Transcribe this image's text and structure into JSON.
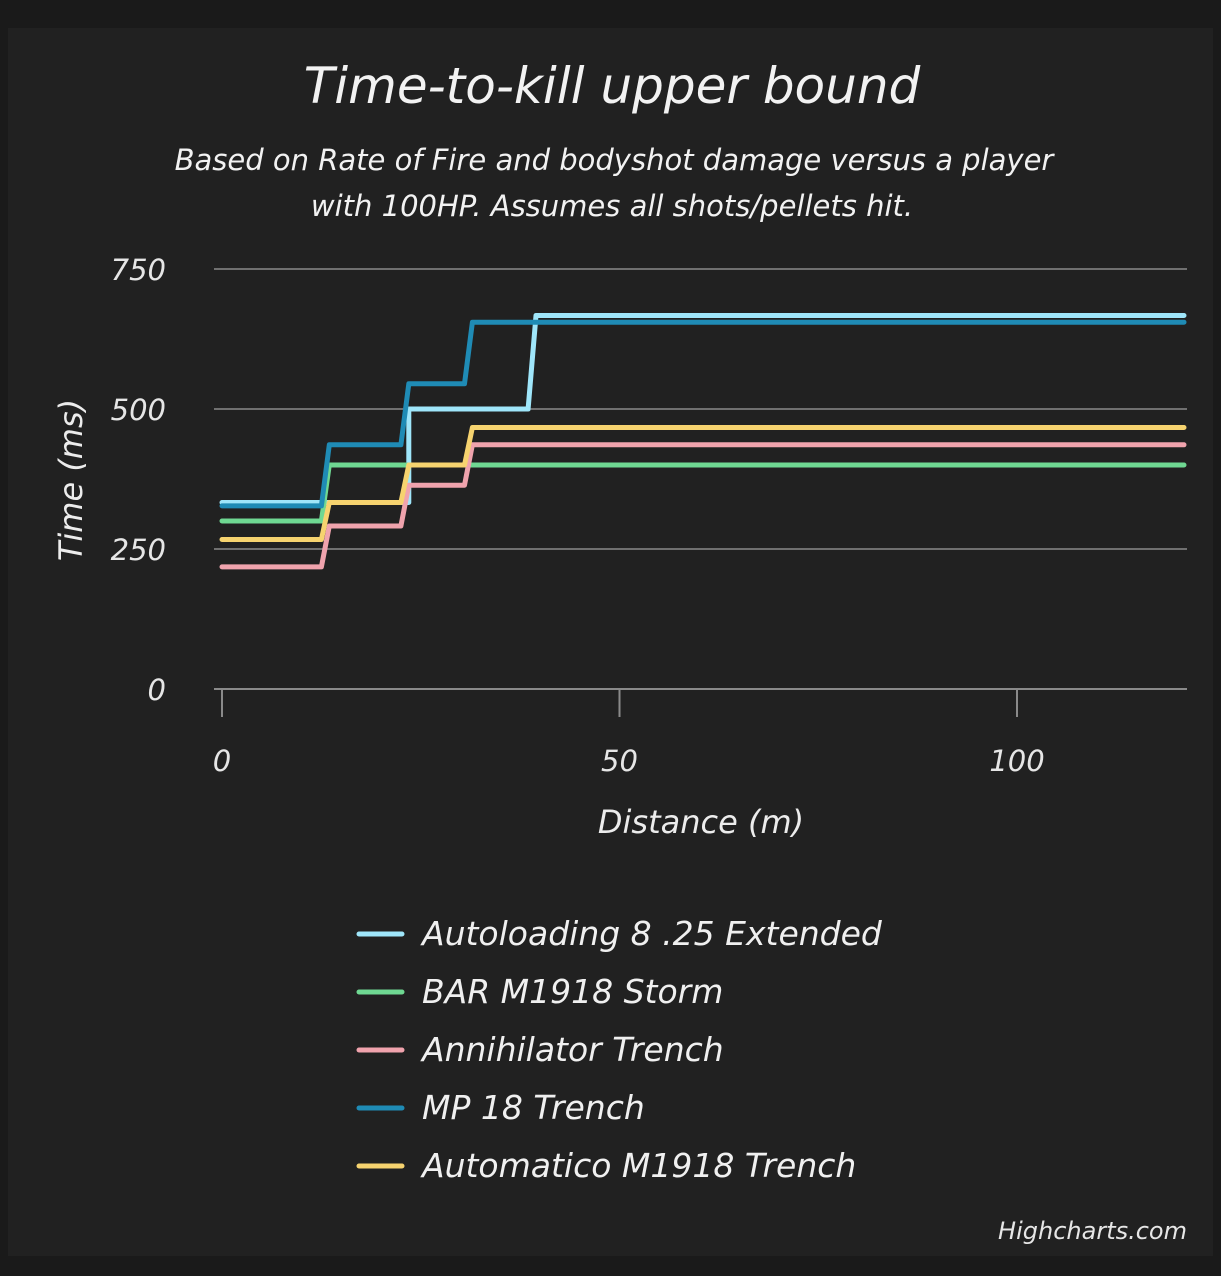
{
  "chart_data": {
    "type": "line",
    "step": true,
    "title": "Time-to-kill upper bound",
    "subtitle_lines": [
      "Based on Rate of Fire and bodyshot damage versus a player",
      "with 100HP. Assumes all shots/pellets hit."
    ],
    "xlabel": "Distance (m)",
    "ylabel": "Time (ms)",
    "xlim": [
      0,
      121
    ],
    "ylim": [
      0,
      750
    ],
    "x_ticks": [
      "0",
      "50",
      "100"
    ],
    "x_tick_values": [
      0,
      50,
      100
    ],
    "y_ticks": [
      "0",
      "250",
      "500",
      "750"
    ],
    "y_tick_values": [
      0,
      250,
      500,
      750
    ],
    "grid": true,
    "legend": "bottom",
    "series": [
      {
        "name": "Autoloading 8 .25 Extended",
        "color": "#9fe6fa",
        "points": [
          [
            0,
            333
          ],
          [
            12.5,
            333
          ],
          [
            12.5,
            333
          ],
          [
            23.5,
            333
          ],
          [
            23.5,
            500
          ],
          [
            38.5,
            500
          ],
          [
            39.5,
            667
          ],
          [
            121,
            667
          ]
        ]
      },
      {
        "name": "BAR M1918 Storm",
        "color": "#6fd892",
        "points": [
          [
            0,
            300
          ],
          [
            12.5,
            300
          ],
          [
            13.5,
            400
          ],
          [
            121,
            400
          ]
        ]
      },
      {
        "name": "Annihilator Trench",
        "color": "#f0a3ad",
        "points": [
          [
            0,
            218
          ],
          [
            12.5,
            218
          ],
          [
            13.5,
            291
          ],
          [
            22.5,
            291
          ],
          [
            23.5,
            364
          ],
          [
            30.5,
            364
          ],
          [
            31.5,
            436
          ],
          [
            121,
            436
          ]
        ]
      },
      {
        "name": "MP 18 Trench",
        "color": "#1f8bb5",
        "points": [
          [
            0,
            327
          ],
          [
            12.5,
            327
          ],
          [
            13.5,
            436
          ],
          [
            22.5,
            436
          ],
          [
            23.5,
            545
          ],
          [
            30.5,
            545
          ],
          [
            31.5,
            655
          ],
          [
            121,
            655
          ]
        ]
      },
      {
        "name": "Automatico M1918 Trench",
        "color": "#f6d36f",
        "points": [
          [
            0,
            267
          ],
          [
            12.5,
            267
          ],
          [
            13.5,
            333
          ],
          [
            22.5,
            333
          ],
          [
            23.5,
            400
          ],
          [
            30.5,
            400
          ],
          [
            31.5,
            467
          ],
          [
            121,
            467
          ]
        ]
      }
    ],
    "credits": "Highcharts.com"
  }
}
